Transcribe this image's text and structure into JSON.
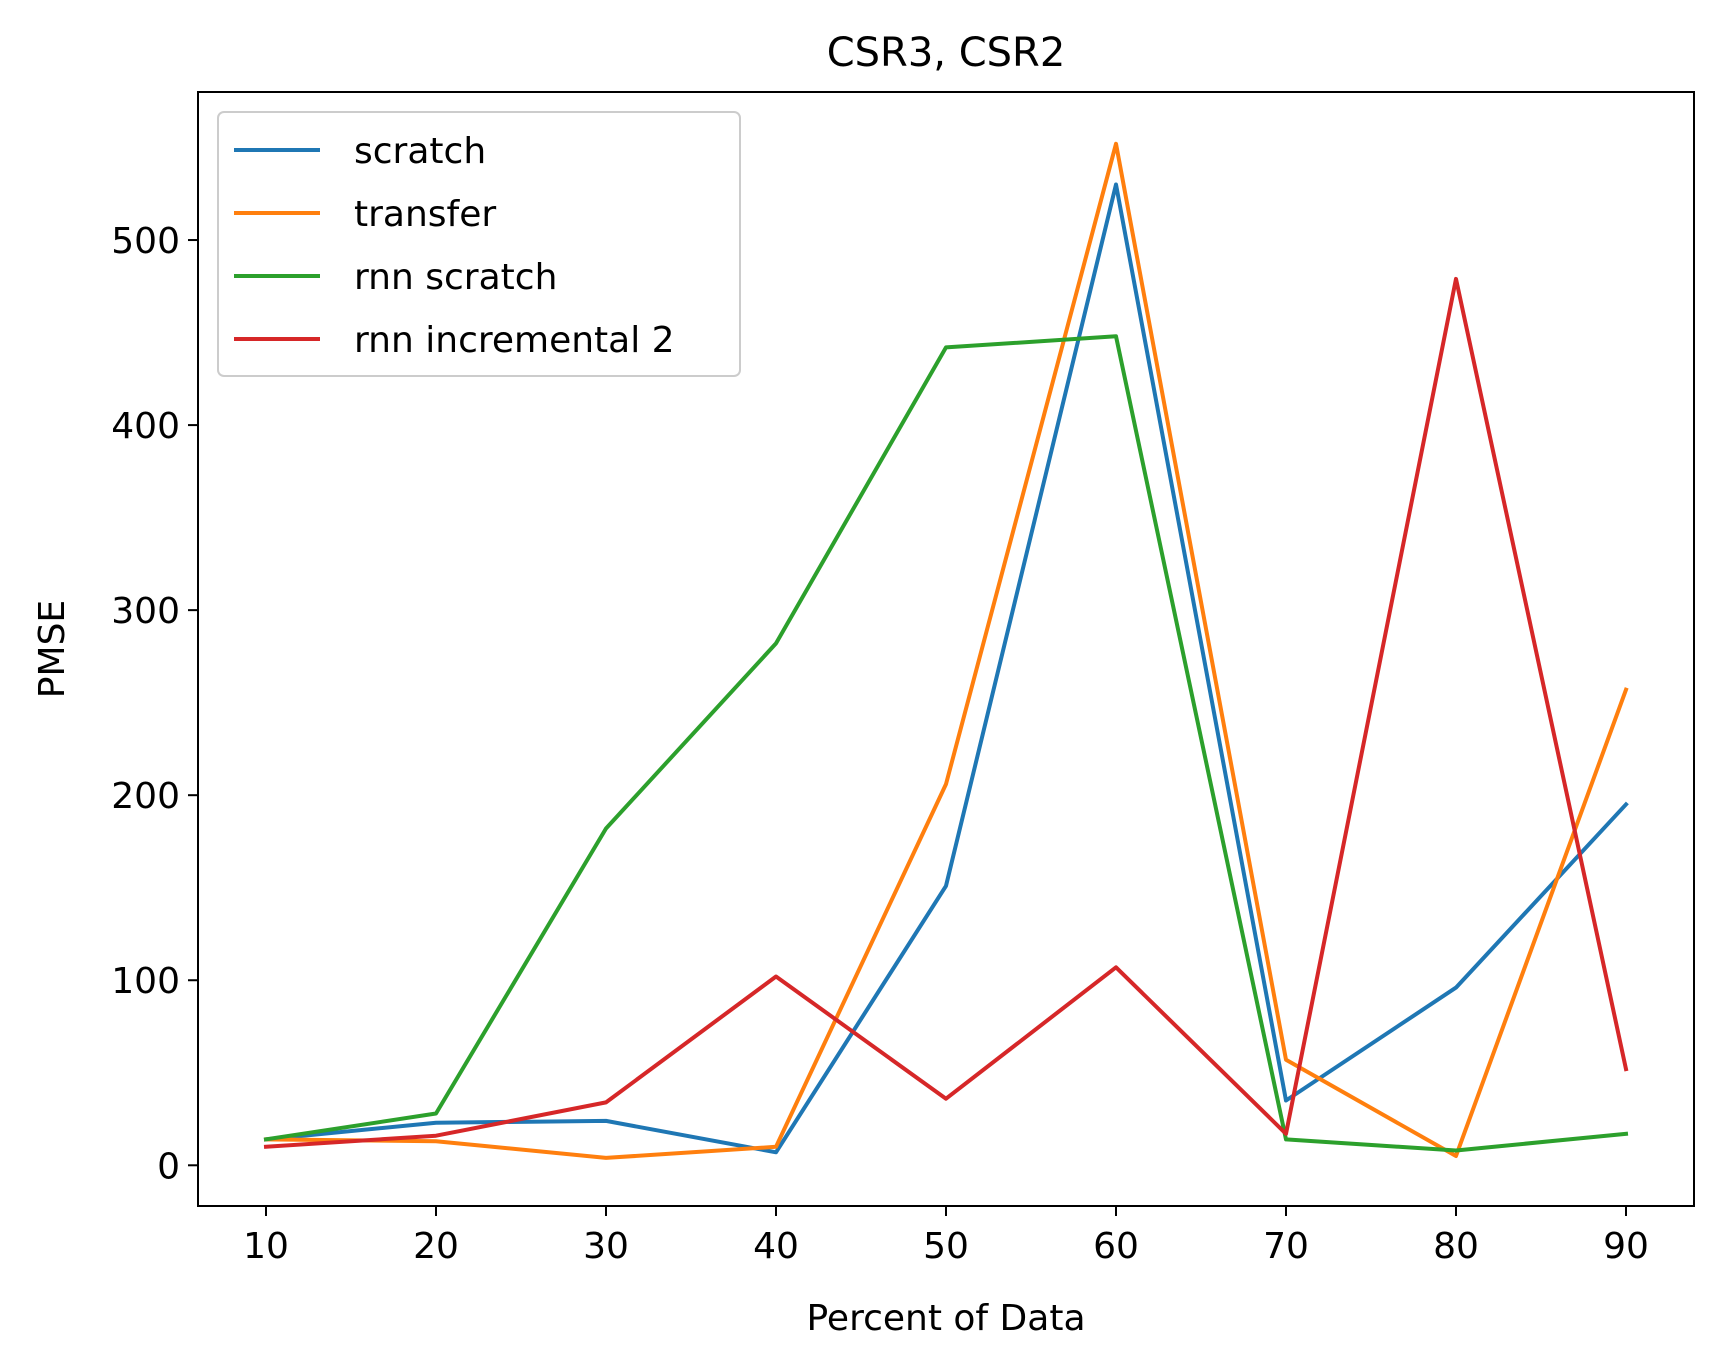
{
  "chart_data": {
    "type": "line",
    "title": "CSR3, CSR2",
    "xlabel": "Percent of Data",
    "ylabel": "PMSE",
    "x": [
      10,
      20,
      30,
      40,
      50,
      60,
      70,
      80,
      90
    ],
    "xticks": [
      10,
      20,
      30,
      40,
      50,
      60,
      70,
      80,
      90
    ],
    "yticks": [
      0,
      100,
      200,
      300,
      400,
      500
    ],
    "xlim": [
      6,
      94
    ],
    "ylim": [
      -22,
      580
    ],
    "grid": false,
    "legend_position": "upper-left",
    "series": [
      {
        "name": "scratch",
        "color": "#1f77b4",
        "values": [
          14,
          23,
          24,
          7,
          151,
          530,
          35,
          96,
          195
        ]
      },
      {
        "name": "transfer",
        "color": "#ff7f0e",
        "values": [
          14,
          13,
          4,
          10,
          206,
          552,
          57,
          5,
          257
        ]
      },
      {
        "name": "rnn scratch",
        "color": "#2ca02c",
        "values": [
          14,
          28,
          182,
          282,
          442,
          448,
          14,
          8,
          17
        ]
      },
      {
        "name": "rnn incremental 2",
        "color": "#d62728",
        "values": [
          10,
          16,
          34,
          102,
          36,
          107,
          17,
          479,
          52
        ]
      }
    ]
  }
}
